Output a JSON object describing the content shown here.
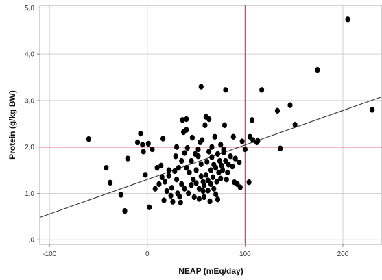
{
  "chart_data": {
    "type": "scatter",
    "xlabel": "NEAP (mEq/day)",
    "ylabel": "Protein (g/kg BW)",
    "xlim": [
      -110,
      240
    ],
    "ylim": [
      -0.1,
      5.05
    ],
    "x_ticks": [
      -100,
      0,
      100,
      200
    ],
    "x_tick_labels": [
      "-100",
      "0",
      "100",
      "200"
    ],
    "y_ticks": [
      0,
      1,
      2,
      3,
      4,
      5
    ],
    "y_tick_labels": [
      ",0",
      "1,0",
      "2,0",
      "3,0",
      "4,0",
      "5,0"
    ],
    "grid": true,
    "reference_lines": {
      "x": 100,
      "y": 2.0,
      "color": "#e8414f"
    },
    "fit_line": {
      "slope": 0.00743,
      "intercept": 1.3,
      "color": "#333333"
    },
    "colors": {
      "points": "#000000",
      "grid": "#d0d0d0",
      "frame": "#aaaaaa"
    },
    "points": [
      [
        -60,
        2.17
      ],
      [
        -42,
        1.55
      ],
      [
        -38,
        1.23
      ],
      [
        -27,
        0.97
      ],
      [
        -23,
        0.62
      ],
      [
        -20,
        1.75
      ],
      [
        -10,
        2.1
      ],
      [
        -7,
        2.29
      ],
      [
        -5,
        2.05
      ],
      [
        -4,
        1.9
      ],
      [
        -2,
        1.4
      ],
      [
        1,
        2.07
      ],
      [
        2,
        0.7
      ],
      [
        5,
        1.95
      ],
      [
        8,
        1.1
      ],
      [
        10,
        1.55
      ],
      [
        12,
        1.2
      ],
      [
        14,
        1.6
      ],
      [
        15,
        1.35
      ],
      [
        16,
        2.18
      ],
      [
        17,
        0.85
      ],
      [
        18,
        1.25
      ],
      [
        20,
        1.05
      ],
      [
        22,
        1.5
      ],
      [
        22,
        1.38
      ],
      [
        24,
        0.95
      ],
      [
        25,
        1.12
      ],
      [
        26,
        0.82
      ],
      [
        28,
        1.48
      ],
      [
        29,
        1.8
      ],
      [
        30,
        2.0
      ],
      [
        30,
        1.3
      ],
      [
        31,
        1.0
      ],
      [
        32,
        1.55
      ],
      [
        33,
        0.93
      ],
      [
        34,
        0.8
      ],
      [
        35,
        1.2
      ],
      [
        35,
        1.7
      ],
      [
        36,
        2.58
      ],
      [
        37,
        2.32
      ],
      [
        38,
        1.87
      ],
      [
        38,
        1.1
      ],
      [
        40,
        1.55
      ],
      [
        40,
        2.6
      ],
      [
        40,
        2.37
      ],
      [
        41,
        1.98
      ],
      [
        42,
        1.0
      ],
      [
        43,
        1.45
      ],
      [
        45,
        1.7
      ],
      [
        45,
        1.18
      ],
      [
        46,
        2.2
      ],
      [
        47,
        1.3
      ],
      [
        48,
        0.92
      ],
      [
        49,
        1.85
      ],
      [
        50,
        1.5
      ],
      [
        50,
        1.22
      ],
      [
        52,
        1.8
      ],
      [
        52,
        1.95
      ],
      [
        53,
        1.1
      ],
      [
        53,
        0.88
      ],
      [
        54,
        2.1
      ],
      [
        55,
        1.63
      ],
      [
        55,
        1.37
      ],
      [
        55,
        3.3
      ],
      [
        56,
        2.15
      ],
      [
        57,
        1.25
      ],
      [
        57,
        1.05
      ],
      [
        58,
        1.18
      ],
      [
        58,
        0.92
      ],
      [
        59,
        2.47
      ],
      [
        60,
        2.65
      ],
      [
        60,
        1.4
      ],
      [
        61,
        1.68
      ],
      [
        62,
        1.28
      ],
      [
        62,
        1.06
      ],
      [
        63,
        1.9
      ],
      [
        63,
        2.6
      ],
      [
        64,
        0.83
      ],
      [
        65,
        1.5
      ],
      [
        65,
        1.2
      ],
      [
        66,
        2.0
      ],
      [
        66,
        1.78
      ],
      [
        67,
        1.35
      ],
      [
        68,
        1.62
      ],
      [
        68,
        1.1
      ],
      [
        69,
        2.22
      ],
      [
        70,
        0.98
      ],
      [
        70,
        1.55
      ],
      [
        71,
        1.25
      ],
      [
        72,
        0.87
      ],
      [
        72,
        1.85
      ],
      [
        73,
        1.45
      ],
      [
        74,
        1.7
      ],
      [
        75,
        2.05
      ],
      [
        75,
        1.32
      ],
      [
        76,
        1.6
      ],
      [
        77,
        1.5
      ],
      [
        78,
        1.88
      ],
      [
        78,
        1.95
      ],
      [
        79,
        2.47
      ],
      [
        80,
        3.23
      ],
      [
        80,
        1.7
      ],
      [
        81,
        1.3
      ],
      [
        82,
        1.45
      ],
      [
        83,
        1.62
      ],
      [
        85,
        1.8
      ],
      [
        87,
        1.58
      ],
      [
        88,
        2.22
      ],
      [
        89,
        1.24
      ],
      [
        90,
        1.75
      ],
      [
        92,
        1.2
      ],
      [
        94,
        1.67
      ],
      [
        95,
        1.13
      ],
      [
        97,
        2.12
      ],
      [
        100,
        1.95
      ],
      [
        104,
        1.24
      ],
      [
        105,
        2.22
      ],
      [
        107,
        2.58
      ],
      [
        108,
        2.15
      ],
      [
        112,
        2.1
      ],
      [
        113,
        2.13
      ],
      [
        117,
        3.23
      ],
      [
        133,
        2.78
      ],
      [
        136,
        1.97
      ],
      [
        146,
        2.9
      ],
      [
        151,
        2.48
      ],
      [
        174,
        3.66
      ],
      [
        205,
        4.75
      ],
      [
        230,
        2.8
      ]
    ]
  }
}
